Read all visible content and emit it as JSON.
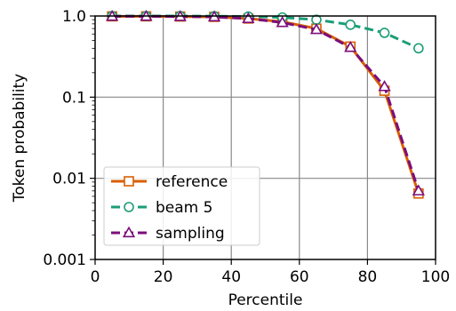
{
  "chart_data": {
    "type": "line",
    "title": "",
    "xlabel": "Percentile",
    "ylabel": "Token probability",
    "xlim": [
      0,
      100
    ],
    "ylim": [
      0.001,
      1.0
    ],
    "yscale": "log",
    "grid": true,
    "legend_position": "bottom-left",
    "x_ticks": [
      0,
      20,
      40,
      60,
      80,
      100
    ],
    "x_tick_labels": [
      "0",
      "20",
      "40",
      "60",
      "80",
      "100"
    ],
    "y_ticks": [
      0.001,
      0.01,
      0.1,
      1.0
    ],
    "y_tick_labels": [
      "0.001",
      "0.01",
      "0.1",
      "1.0"
    ],
    "x": [
      5,
      15,
      25,
      35,
      45,
      55,
      65,
      75,
      85,
      95
    ],
    "series": [
      {
        "name": "reference",
        "color": "#d95f02",
        "marker": "square",
        "dashed": false,
        "values": [
          0.99,
          0.99,
          0.985,
          0.975,
          0.93,
          0.85,
          0.7,
          0.42,
          0.12,
          0.0065
        ]
      },
      {
        "name": "beam 5",
        "color": "#1b9e77",
        "marker": "circle",
        "dashed": true,
        "values": [
          1.0,
          1.0,
          1.0,
          0.995,
          0.985,
          0.96,
          0.9,
          0.78,
          0.62,
          0.4
        ]
      },
      {
        "name": "sampling",
        "color": "#7b0e7b",
        "marker": "triangle",
        "dashed": true,
        "values": [
          0.99,
          0.99,
          0.985,
          0.975,
          0.93,
          0.83,
          0.68,
          0.41,
          0.135,
          0.007
        ]
      }
    ]
  }
}
